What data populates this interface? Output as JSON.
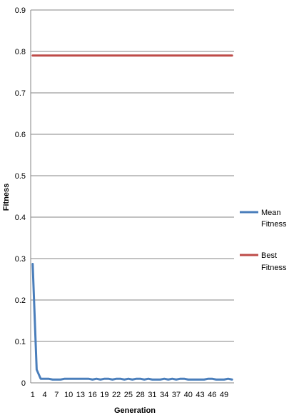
{
  "chart_data": {
    "type": "line",
    "title": "",
    "xlabel": "Generation",
    "ylabel": "Fitness",
    "ylim": [
      0,
      0.9
    ],
    "yticks": [
      "0",
      "0.1",
      "0.2",
      "0.3",
      "0.4",
      "0.5",
      "0.6",
      "0.7",
      "0.8",
      "0.9"
    ],
    "xticks": [
      "1",
      "4",
      "7",
      "10",
      "13",
      "16",
      "19",
      "22",
      "25",
      "28",
      "31",
      "34",
      "37",
      "40",
      "43",
      "46",
      "49"
    ],
    "x": [
      1,
      2,
      3,
      4,
      5,
      6,
      7,
      8,
      9,
      10,
      11,
      12,
      13,
      14,
      15,
      16,
      17,
      18,
      19,
      20,
      21,
      22,
      23,
      24,
      25,
      26,
      27,
      28,
      29,
      30,
      31,
      32,
      33,
      34,
      35,
      36,
      37,
      38,
      39,
      40,
      41,
      42,
      43,
      44,
      45,
      46,
      47,
      48,
      49,
      50,
      51
    ],
    "grid": true,
    "legend_position": "right",
    "series": [
      {
        "name": "Mean Fitness",
        "color": "#4a7ebb",
        "values": [
          0.287,
          0.032,
          0.01,
          0.01,
          0.01,
          0.008,
          0.008,
          0.008,
          0.01,
          0.01,
          0.01,
          0.01,
          0.01,
          0.01,
          0.01,
          0.008,
          0.01,
          0.008,
          0.01,
          0.01,
          0.008,
          0.01,
          0.01,
          0.008,
          0.01,
          0.008,
          0.01,
          0.01,
          0.008,
          0.01,
          0.008,
          0.008,
          0.008,
          0.01,
          0.008,
          0.01,
          0.008,
          0.01,
          0.01,
          0.008,
          0.008,
          0.008,
          0.008,
          0.008,
          0.01,
          0.01,
          0.008,
          0.008,
          0.008,
          0.01,
          0.008
        ]
      },
      {
        "name": "Best Fitness",
        "color": "#be4b48",
        "values": [
          0.79,
          0.79,
          0.79,
          0.79,
          0.79,
          0.79,
          0.79,
          0.79,
          0.79,
          0.79,
          0.79,
          0.79,
          0.79,
          0.79,
          0.79,
          0.79,
          0.79,
          0.79,
          0.79,
          0.79,
          0.79,
          0.79,
          0.79,
          0.79,
          0.79,
          0.79,
          0.79,
          0.79,
          0.79,
          0.79,
          0.79,
          0.79,
          0.79,
          0.79,
          0.79,
          0.79,
          0.79,
          0.79,
          0.79,
          0.79,
          0.79,
          0.79,
          0.79,
          0.79,
          0.79,
          0.79,
          0.79,
          0.79,
          0.79,
          0.79,
          0.79
        ]
      }
    ],
    "legend": [
      {
        "line1": "Mean",
        "line2": "Fitness"
      },
      {
        "line1": "Best",
        "line2": "Fitness"
      }
    ]
  }
}
